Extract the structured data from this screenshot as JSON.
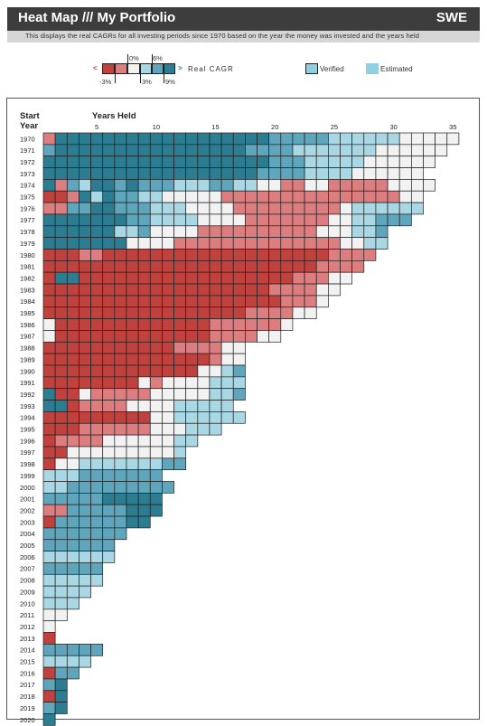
{
  "header": {
    "title": "Heat Map /// My Portfolio",
    "region": "SWE"
  },
  "subtitle": "This displays the real CAGRs for all investing periods since 1970 based on the year the money was invested and the years held",
  "legend": {
    "scale_title": "Real CAGR",
    "ticks_top": [
      "0%",
      "6%"
    ],
    "ticks_bottom": [
      "-3%",
      "3%",
      "9%"
    ],
    "less_symbol": "<",
    "greater_symbol": ">",
    "verified_label": "Verified",
    "estimated_label": "Estimated"
  },
  "colors": {
    "lt_neg3": "#c0423f",
    "neg3_0": "#dc7e80",
    "0_3": "#f2f2f2",
    "3_6": "#a9d8e4",
    "6_9": "#5fa6bc",
    "gt_9": "#2c7d92",
    "verified": "#8fcfe0",
    "estimated": "#8fcfe0"
  },
  "chart_data": {
    "type": "heatmap",
    "title": "Heat Map /// My Portfolio",
    "y_label": "Start Year",
    "x_label": "Years Held",
    "x_ticks": [
      "5",
      "10",
      "15",
      "20",
      "25",
      "30",
      "35"
    ],
    "start_years": [
      1970,
      1971,
      1972,
      1973,
      1974,
      1975,
      1976,
      1977,
      1978,
      1979,
      1980,
      1981,
      1982,
      1983,
      1984,
      1985,
      1986,
      1987,
      1988,
      1989,
      1990,
      1991,
      1992,
      1993,
      1994,
      1995,
      1996,
      1997,
      1998,
      1999,
      2000,
      2001,
      2002,
      2003,
      2004,
      2005,
      2006,
      2007,
      2008,
      2009,
      2010,
      2011,
      2012,
      2013,
      2014,
      2015,
      2016,
      2017,
      2018,
      2019,
      2020
    ],
    "max_years_held": 35,
    "end_year": 2020,
    "category_order": [
      "<-3%",
      "-3% to 0%",
      "0% to 3%",
      "3% to 6%",
      "6% to 9%",
      ">9%"
    ],
    "rows": [
      "B5555555555555555554444433333322222",
      "4555555555555555544443333333222222",
      "555555555555555555544433333222222",
      "55555555555555555544443333222222",
      "5B435545444333443322BB22BBBBB2222",
      "AAB535443322222BBBBBBBBBBBBBBB22",
      "BB44554443332222BBBBBBBBB2333333",
      "55555554433332222BBBBBBB2233444",
      "5555553342222BBBBBBBBBB222334",
      "55555552222BBBBBBBBBBBBBB2233",
      "AAABBAAAAAAAAAAAAAAAAAAABBBB",
      "AAAAAAAAAAAAAAAAAAAAAAABBBB",
      "A55AAAAAAAAAAAAAAAAAABBB22",
      "AAAAAAAAAAAAAAAAAAABBBB22",
      "AAAAAAAAAAAAAAAAAAAABBB2",
      "AAAAAAAAAAAAAAAAABBBB22",
      "2AAAAAAAAAAAAABBBBBB2",
      "2AAAAAAAAAAAAABBBB22",
      "AAAAAAAAAAABBBB22",
      "AAAAAAAAAAAAAAB22",
      "AAAAAAAAAAAAA2234",
      "AAAAAAAA2B2222333",
      "5AA2BBBBB22222334",
      "55ABBBB222233333",
      "AAAAAAAAA22333333",
      "AAABBBBBB222333",
      "ABBBB22222233",
      "AA2222222223",
      "A22333333344",
      "3334444444",
      "33444444444",
      "4444455555",
      "BB44444555",
      "A44444455",
      "4444444",
      "444444",
      "333333",
      "44444",
      "33333",
      "3333",
      "333",
      "22",
      "2",
      "A",
      "44444",
      "3333",
      "A44",
      "45",
      "A5",
      "45",
      "5"
    ]
  }
}
